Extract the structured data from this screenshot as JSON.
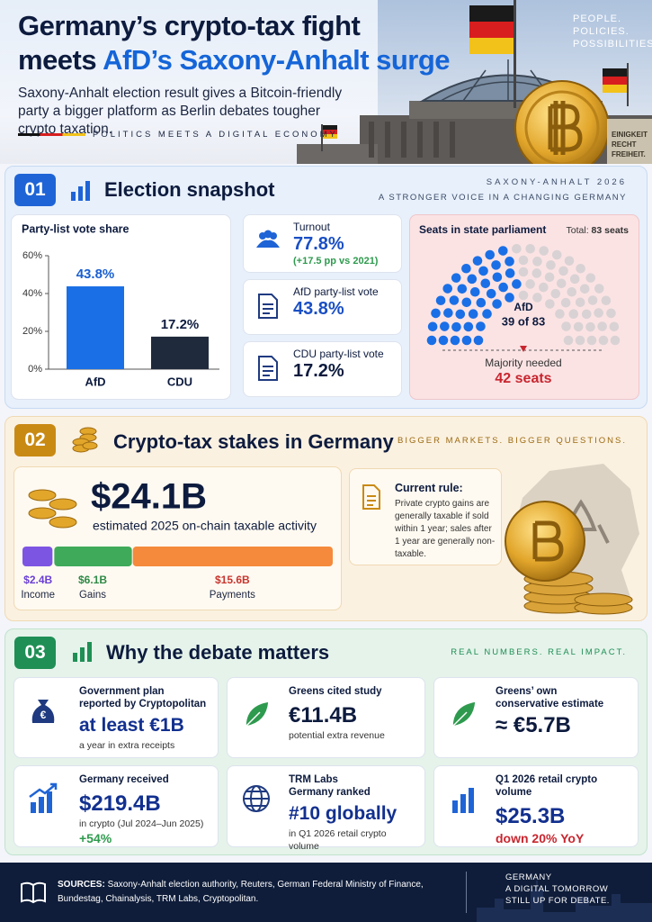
{
  "header": {
    "title_line1": "Germany’s crypto-tax fight",
    "title_line2_prefix": "meets ",
    "title_line2_highlight": "AfD’s Saxony-Anhalt surge",
    "subtitle": "Saxony-Anhalt election result gives a Bitcoin-friendly party a bigger platform as Berlin debates tougher crypto taxation.",
    "tagline": "POLITICS MEETS A DIGITAL ECONOMY",
    "corner": [
      "PEOPLE.",
      "POLICIES.",
      "POSSIBILITIES."
    ],
    "sign": [
      "EINIGKEIT",
      "RECHT",
      "FREIHEIT."
    ]
  },
  "section1": {
    "number": "01",
    "title": "Election snapshot",
    "kicker": "SAXONY-ANHALT 2026",
    "kicker2": "A STRONGER VOICE IN A CHANGING GERMANY",
    "vote_chart": {
      "chart_data": {
        "type": "bar",
        "title": "Party-list vote share",
        "categories": [
          "AfD",
          "CDU"
        ],
        "values": [
          43.8,
          17.2
        ],
        "value_labels": [
          "43.8%",
          "17.2%"
        ],
        "colors": [
          "#1a6fe6",
          "#1f2a3c"
        ],
        "ylim": [
          0,
          60
        ],
        "yticks": [
          {
            "value": 0,
            "label": "0%"
          },
          {
            "value": 20,
            "label": "20%"
          },
          {
            "value": 40,
            "label": "40%"
          },
          {
            "value": 60,
            "label": "60%"
          }
        ]
      }
    },
    "stats": [
      {
        "label": "Turnout",
        "value": "77.8%",
        "note": "(+17.5 pp vs 2021)"
      },
      {
        "label": "AfD party-list vote",
        "value": "43.8%"
      },
      {
        "label": "CDU party-list vote",
        "value": "17.2%"
      }
    ],
    "seat_chart": {
      "chart_data": {
        "type": "parliament",
        "title": "Seats in state parliament",
        "total_prefix": "Total:",
        "total": 83,
        "total_label": "83 seats",
        "party": "AfD",
        "seats": 39,
        "seats_label": "39 of 83",
        "majority_text": "Majority needed",
        "majority": 42,
        "majority_label": "42 seats",
        "color": "#1a6fe6",
        "other_color": "#d9d2d4"
      }
    }
  },
  "section2": {
    "number": "02",
    "title": "Crypto-tax stakes in Germany",
    "kicker": "BIGGER MARKETS. BIGGER QUESTIONS.",
    "activity_chart": {
      "chart_data": {
        "type": "stacked_bar",
        "total_label": "$24.1B",
        "subtitle": "estimated 2025 on-chain taxable activity",
        "categories": [
          "Income",
          "Gains",
          "Payments"
        ],
        "values": [
          2.4,
          6.1,
          15.6
        ],
        "value_labels": [
          "$2.4B",
          "$6.1B",
          "$15.6B"
        ],
        "colors": [
          "#7d55e3",
          "#3faa5a",
          "#f58a3c"
        ],
        "label_colors": [
          "#6a3fd6",
          "#2e8a47",
          "#c8362f"
        ]
      }
    },
    "rule": {
      "title": "Current rule:",
      "text": "Private crypto gains are generally taxable if sold within 1 year; sales after 1 year are generally non-taxable."
    }
  },
  "section3": {
    "number": "03",
    "title": "Why the debate matters",
    "kicker": "REAL NUMBERS. REAL IMPACT.",
    "cards": [
      {
        "heading": [
          "Government plan",
          "reported by Cryptopolitan"
        ],
        "figure": "at least €1B",
        "note": "a year in extra receipts"
      },
      {
        "heading": [
          "Greens cited study"
        ],
        "figure": "€11.4B",
        "note": "potential extra revenue"
      },
      {
        "heading": [
          "Greens’ own",
          "conservative estimate"
        ],
        "figure": "≈ €5.7B"
      },
      {
        "heading": [
          "Germany received"
        ],
        "figure": "$219.4B",
        "note": "in crypto (Jul 2024–Jun 2025)",
        "extra": "+54%",
        "extra_color": "#2e9a4e"
      },
      {
        "heading": [
          "TRM Labs",
          "Germany ranked"
        ],
        "figure": "#10 globally",
        "note": "in Q1 2026 retail crypto volume"
      },
      {
        "heading": [
          "Q1 2026 retail crypto volume"
        ],
        "figure": "$25.3B",
        "extra": "down 20% YoY",
        "extra_color": "#c8262f"
      }
    ]
  },
  "footer": {
    "sources_label": "SOURCES:",
    "sources": "Saxony-Anhalt election authority, Reuters, German Federal Ministry of Finance, Bundestag, Chainalysis, TRM Labs, Cryptopolitan.",
    "right": [
      "GERMANY",
      "A DIGITAL TOMORROW",
      "STILL UP FOR DEBATE."
    ]
  }
}
